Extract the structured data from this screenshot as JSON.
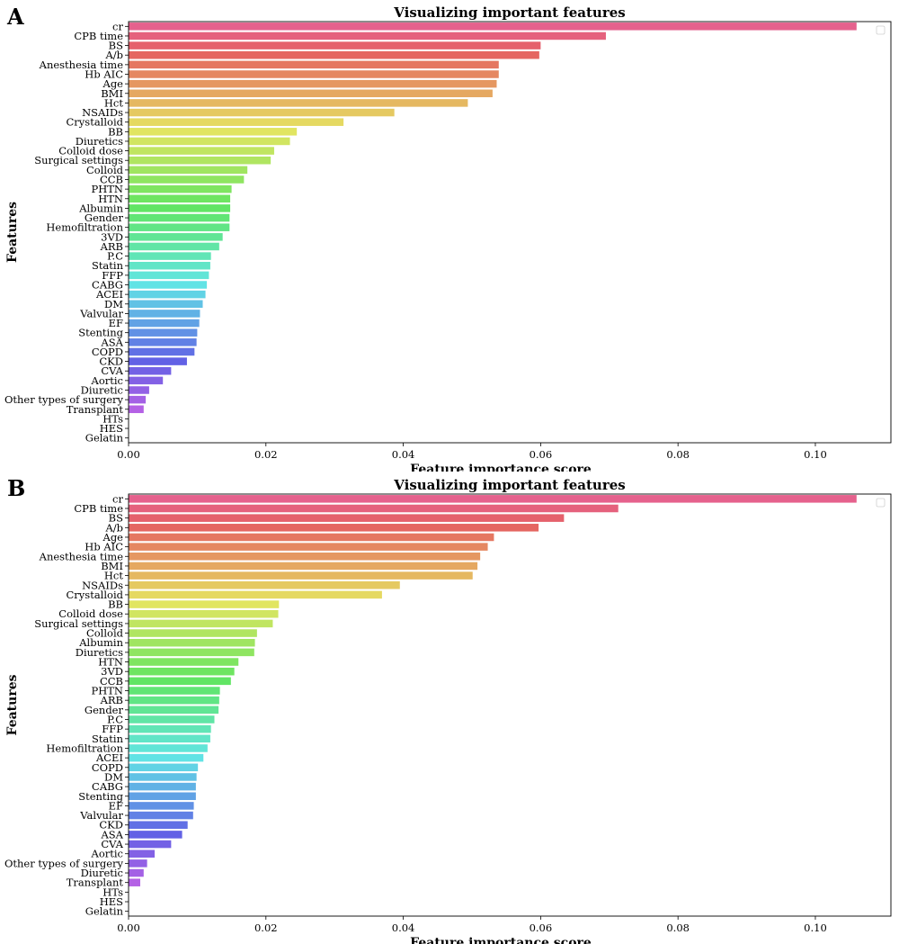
{
  "chart_data": [
    {
      "panel_label": "A",
      "type": "bar",
      "orientation": "horizontal",
      "title": "Visualizing important features",
      "xlabel": "Feature importance score",
      "ylabel": "Features",
      "xlim": [
        0,
        0.111
      ],
      "x_ticks": [
        "0.00",
        "0.02",
        "0.04",
        "0.06",
        "0.08",
        "0.10"
      ],
      "grid": false,
      "legend": "empty box, top-right",
      "categories": [
        "cr",
        "CPB time",
        "BS",
        "A/b",
        "Anesthesia time",
        "Hb AIC",
        "Age",
        "BMI",
        "Hct",
        "NSAIDs",
        "Crystalloid",
        "BB",
        "Diuretics",
        "Colloid dose",
        "Surgical settings",
        "Colloid",
        "CCB",
        "PHTN",
        "HTN",
        "Albumin",
        "Gender",
        "Hemofiltration",
        "3VD",
        "ARB",
        "P.C",
        "Statin",
        "FFP",
        "CABG",
        "ACEI",
        "DM",
        "Valvular",
        "EF",
        "Stenting",
        "ASA",
        "COPD",
        "CKD",
        "CVA",
        "Aortic",
        "Diuretic",
        "Other types of surgery",
        "Transplant",
        "HTs",
        "HES",
        "Gelatin"
      ],
      "values": [
        0.106,
        0.0695,
        0.06,
        0.0598,
        0.0539,
        0.0539,
        0.0536,
        0.053,
        0.0494,
        0.0387,
        0.0313,
        0.0245,
        0.0235,
        0.0212,
        0.0207,
        0.0173,
        0.0168,
        0.015,
        0.0148,
        0.0148,
        0.0147,
        0.0147,
        0.0137,
        0.0132,
        0.012,
        0.0119,
        0.0117,
        0.0114,
        0.0112,
        0.0108,
        0.0104,
        0.0103,
        0.01,
        0.0099,
        0.0096,
        0.0085,
        0.0062,
        0.005,
        0.003,
        0.0025,
        0.0022,
        0,
        0,
        0
      ]
    },
    {
      "panel_label": "B",
      "type": "bar",
      "orientation": "horizontal",
      "title": "Visualizing important features",
      "xlabel": "Feature importance score",
      "ylabel": "Features",
      "xlim": [
        0,
        0.111
      ],
      "x_ticks": [
        "0.00",
        "0.02",
        "0.04",
        "0.06",
        "0.08",
        "0.10"
      ],
      "grid": false,
      "legend": "empty box, top-right",
      "categories": [
        "cr",
        "CPB time",
        "BS",
        "A/b",
        "Age",
        "Hb AIC",
        "Anesthesia time",
        "BMI",
        "Hct",
        "NSAIDs",
        "Crystalloid",
        "BB",
        "Colloid dose",
        "Surgical settings",
        "Colloid",
        "Albumin",
        "Diuretics",
        "HTN",
        "3VD",
        "CCB",
        "PHTN",
        "ARB",
        "Gender",
        "P.C",
        "FFP",
        "Statin",
        "Hemofiltration",
        "ACEI",
        "COPD",
        "DM",
        "CABG",
        "Stenting",
        "EF",
        "Valvular",
        "CKD",
        "ASA",
        "CVA",
        "Aortic",
        "Other types of surgery",
        "Diuretic",
        "Transplant",
        "HTs",
        "HES",
        "Gelatin"
      ],
      "values": [
        0.106,
        0.0713,
        0.0634,
        0.0597,
        0.0532,
        0.0523,
        0.0512,
        0.0508,
        0.0501,
        0.0395,
        0.0369,
        0.0219,
        0.0218,
        0.021,
        0.0187,
        0.0184,
        0.0183,
        0.016,
        0.0154,
        0.0149,
        0.0133,
        0.0132,
        0.0131,
        0.0125,
        0.012,
        0.0119,
        0.0115,
        0.0109,
        0.0101,
        0.0099,
        0.0098,
        0.0098,
        0.0095,
        0.0094,
        0.0086,
        0.0078,
        0.0062,
        0.0038,
        0.0027,
        0.0022,
        0.0017,
        0,
        0,
        0
      ]
    }
  ]
}
